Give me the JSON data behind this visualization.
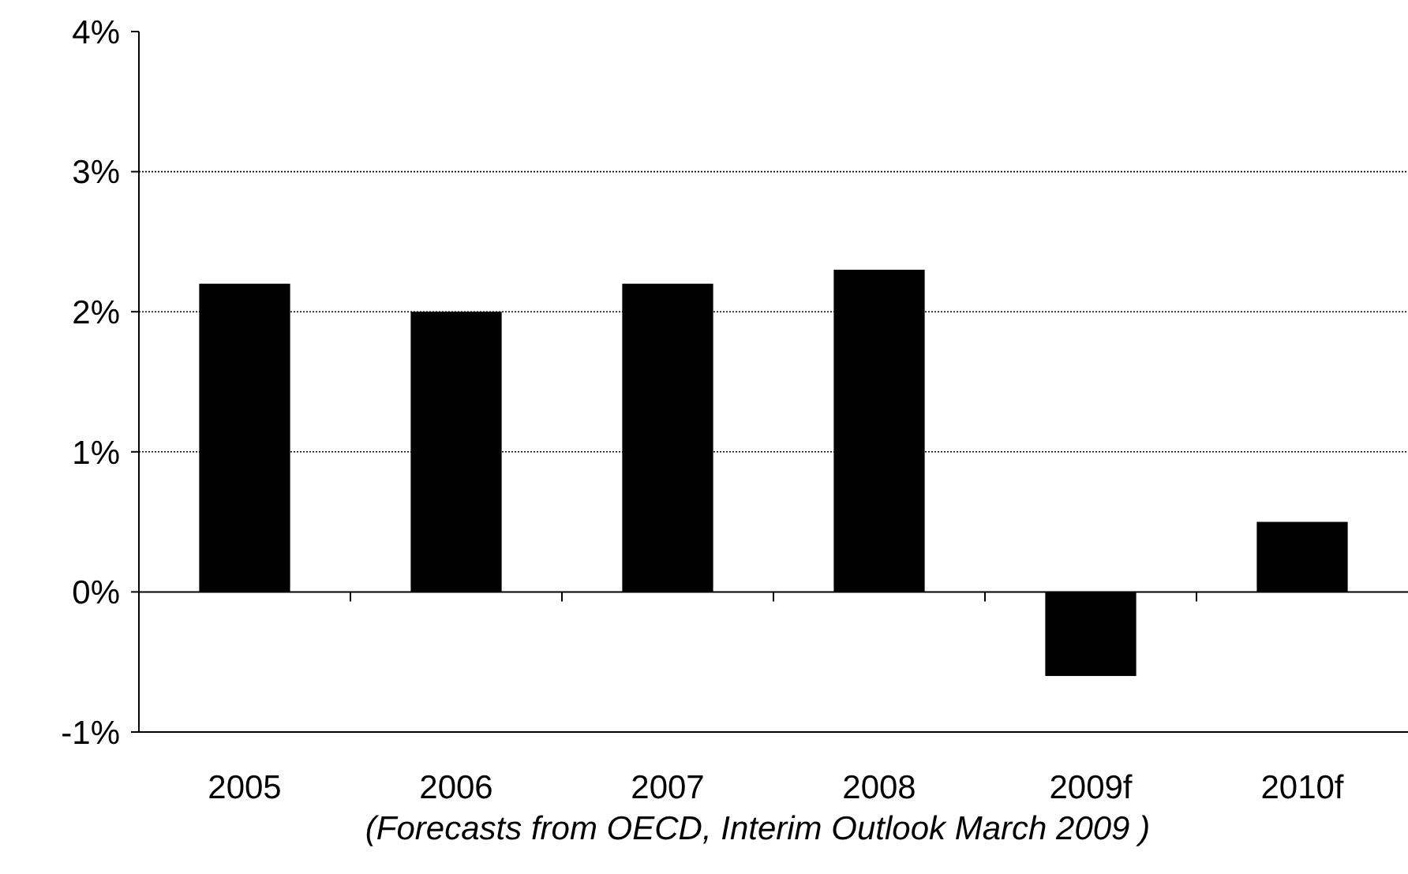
{
  "chart_data": {
    "type": "bar",
    "categories": [
      "2005",
      "2006",
      "2007",
      "2008",
      "2009f",
      "2010f"
    ],
    "values": [
      2.2,
      2.0,
      2.2,
      2.3,
      -0.6,
      0.5
    ],
    "color": "#000000",
    "ylim": [
      -1,
      4
    ],
    "yticks": [
      {
        "value": -1,
        "label": "-1%"
      },
      {
        "value": 0,
        "label": "0%"
      },
      {
        "value": 1,
        "label": "1%"
      },
      {
        "value": 2,
        "label": "2%"
      },
      {
        "value": 3,
        "label": "3%"
      },
      {
        "value": 4,
        "label": "4%"
      }
    ],
    "grid": "y",
    "annotations": [
      "(Forecasts from OECD, Interim Outlook March 2009 )"
    ]
  }
}
